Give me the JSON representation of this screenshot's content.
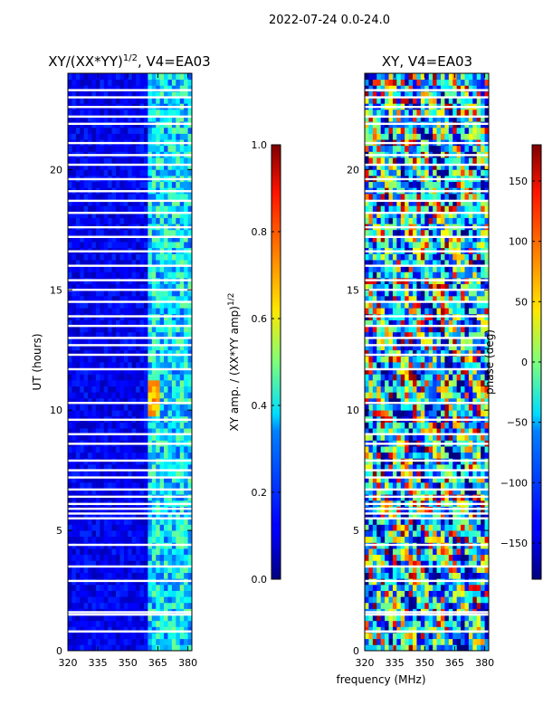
{
  "suptitle": "2022-07-24 0.0-24.0",
  "shared_xlabel": "frequency (MHz)",
  "colors": {
    "axis": "#000000",
    "flag": "#ffffff"
  },
  "chart_data": [
    {
      "type": "heatmap",
      "title": "XY/(XX*YY)^1/2, V4=EA03",
      "title_main": "XY/(XX*YY)",
      "title_sup": "1/2",
      "title_rest": ", V4=EA03",
      "xlabel": "frequency (MHz)",
      "ylabel": "UT (hours)",
      "xlim": [
        320,
        382
      ],
      "ylim": [
        0,
        24
      ],
      "xticks": [
        "320",
        "335",
        "350",
        "365",
        "380"
      ],
      "yticks": [
        "0",
        "5",
        "10",
        "15",
        "20"
      ],
      "colormap": "jet",
      "cbar_label": "XY amp. / (XX*YY amp)",
      "cbar_label_sup": "1/2",
      "cbar_range": [
        0.0,
        1.0
      ],
      "cbar_ticks": [
        "0.0",
        "0.2",
        "0.4",
        "0.6",
        "0.8",
        "1.0"
      ],
      "description": "Mostly low amplitude (0.0-0.15) below 360 MHz; elevated amplitude (0.3-0.5) in 360-382 MHz band; peak near 0.75 around 10-11 UT at 362-366 MHz",
      "flagged_ut_hours": [
        0.8,
        1.5,
        1.6,
        2.9,
        3.5,
        4.4,
        5.5,
        5.7,
        5.9,
        6.1,
        6.4,
        6.7,
        7.2,
        7.5,
        7.9,
        8.6,
        9.0,
        9.6,
        10.3,
        11.7,
        12.3,
        12.7,
        13.0,
        13.5,
        13.9,
        14.5,
        15.0,
        15.4,
        16.0,
        16.6,
        17.2,
        17.6,
        18.2,
        18.7,
        19.1,
        19.6,
        20.2,
        20.6,
        21.1,
        21.9,
        22.2,
        22.6,
        23.0,
        23.3
      ]
    },
    {
      "type": "heatmap",
      "title": "XY, V4=EA03",
      "xlabel": "frequency (MHz)",
      "ylabel": "",
      "xlim": [
        320,
        382
      ],
      "ylim": [
        0,
        24
      ],
      "xticks": [
        "320",
        "335",
        "350",
        "365",
        "380"
      ],
      "yticks": [
        "0",
        "5",
        "10",
        "15",
        "20"
      ],
      "colormap": "jet",
      "cbar_label": "phase (deg)",
      "cbar_range": [
        -180,
        180
      ],
      "cbar_ticks": [
        "−150",
        "−100",
        "−50",
        "0",
        "50",
        "100",
        "150"
      ],
      "description": "Phase spans the full -180..180 range, appearing noisy; blue-cyan dominated with red/orange patches",
      "flagged_ut_hours": [
        0.8,
        1.5,
        1.6,
        2.9,
        3.5,
        4.4,
        5.5,
        5.7,
        5.9,
        6.1,
        6.4,
        6.7,
        7.2,
        7.5,
        7.9,
        8.6,
        9.0,
        9.6,
        10.3,
        11.7,
        12.3,
        12.7,
        13.0,
        13.5,
        13.9,
        14.5,
        15.0,
        15.4,
        16.0,
        16.6,
        17.2,
        17.6,
        18.2,
        18.7,
        19.1,
        19.6,
        20.2,
        20.6,
        21.1,
        21.9,
        22.2,
        22.6,
        23.0,
        23.3
      ]
    }
  ]
}
